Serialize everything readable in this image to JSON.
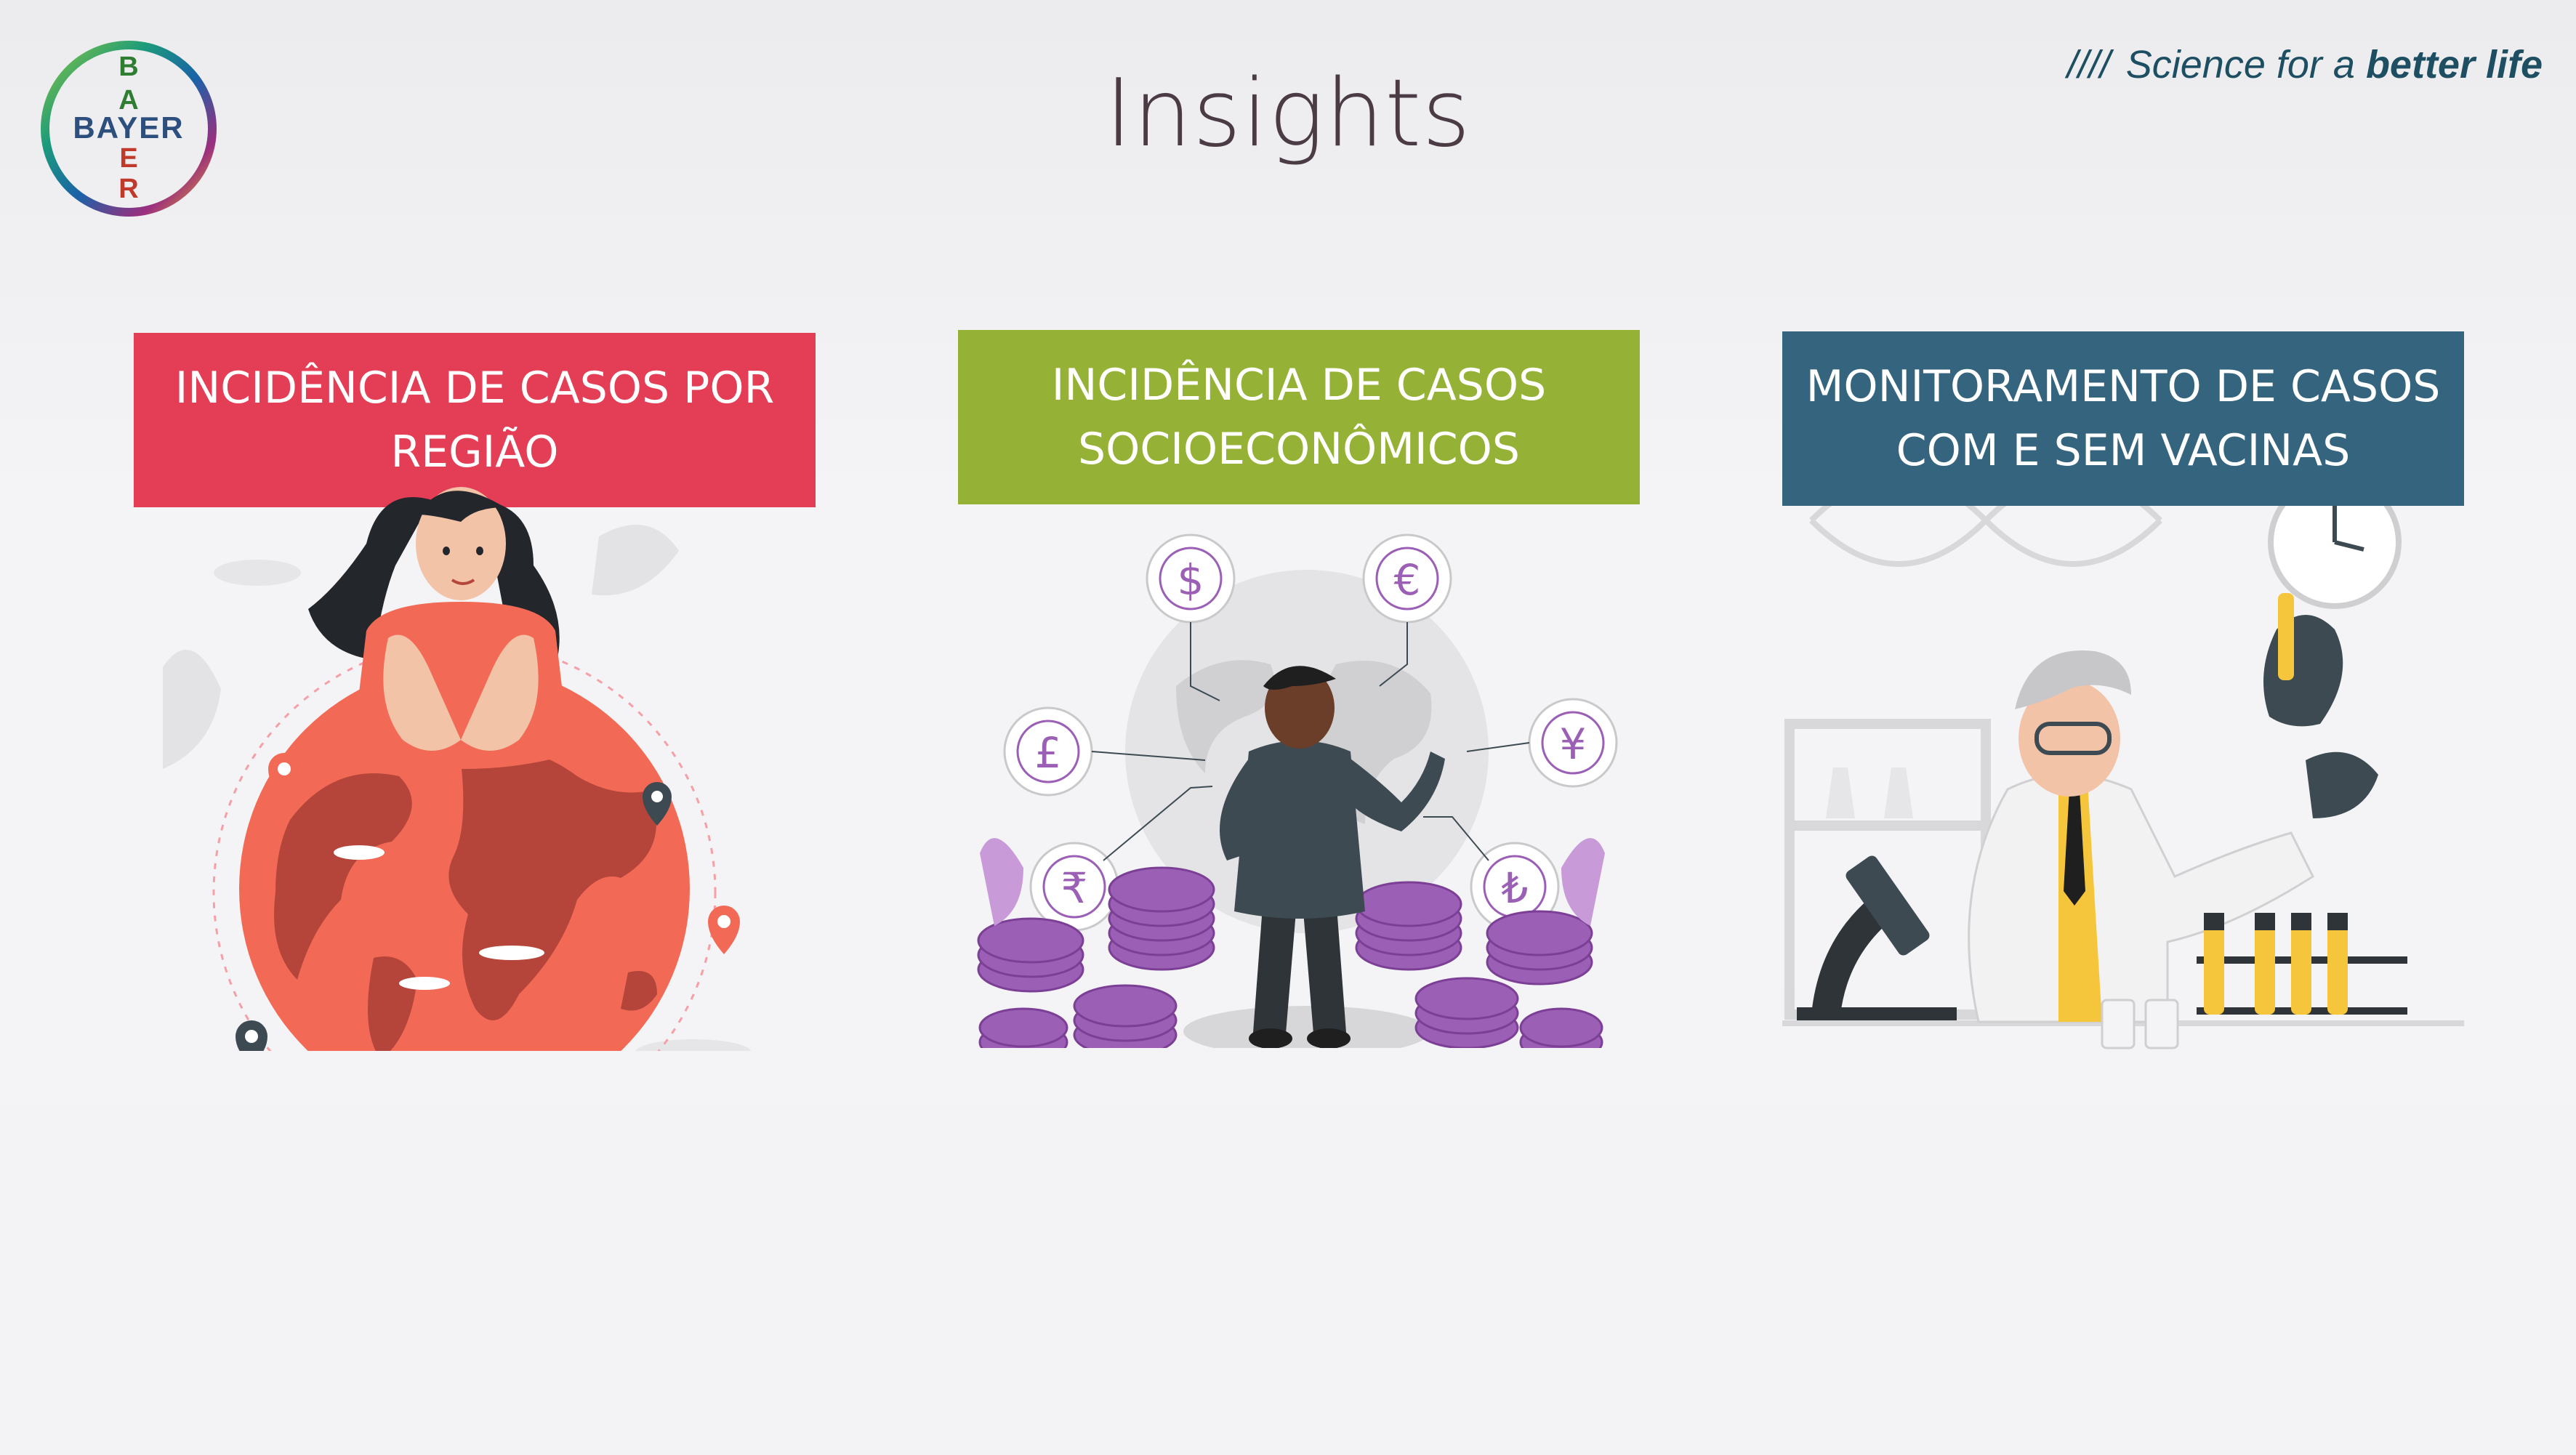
{
  "header": {
    "title": "Insights",
    "tagline": {
      "slashes": "////",
      "prefix": "Science for a",
      "emphasis": "better life"
    },
    "logo": {
      "top": "B",
      "middle": "BAYER",
      "bottom": "R",
      "colors": [
        "#2e8b3a",
        "#1b6fb3",
        "#d9342b",
        "#8bc34a"
      ]
    }
  },
  "cards": [
    {
      "line1": "INCIDÊNCIA DE CASOS POR",
      "line2": "REGIÃO",
      "color": "#e43d56",
      "illustration": "globe-woman-illustration"
    },
    {
      "line1": "INCIDÊNCIA DE CASOS",
      "line2": "SOCIOECONÔMICOS",
      "color": "#96b236",
      "illustration": "currency-man-illustration"
    },
    {
      "line1": "MONITORAMENTO DE CASOS",
      "line2": "COM E SEM VACINAS",
      "color": "#35647e",
      "illustration": "scientist-lab-illustration"
    }
  ],
  "currencies": [
    "$",
    "€",
    "£",
    "¥",
    "₹",
    "₺"
  ]
}
